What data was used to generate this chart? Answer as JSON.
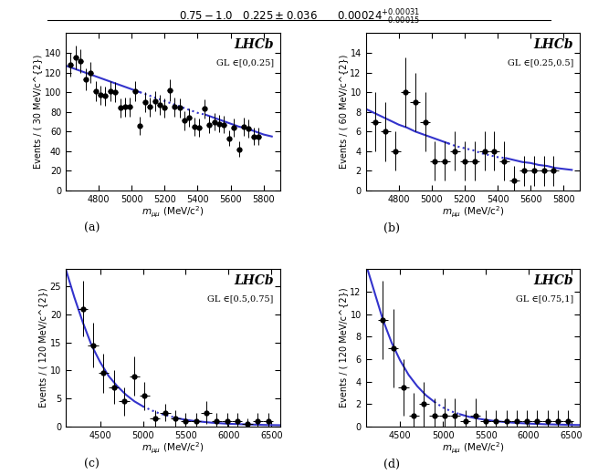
{
  "panel_a": {
    "label": "(a)",
    "lhcb_text": "LHCb",
    "gl_text": "GL ∈[0,0.25]",
    "xlabel": "m_{μμ} (MeV/c^{2})",
    "ylabel": "Events / ( 30 MeV/c^{2})",
    "xlim": [
      4600,
      5900
    ],
    "ylim": [
      0,
      160
    ],
    "yticks": [
      0,
      20,
      40,
      60,
      80,
      100,
      120,
      140
    ],
    "xticks": [
      4800,
      5000,
      5200,
      5400,
      5600,
      5800
    ],
    "data_x": [
      4630,
      4660,
      4690,
      4720,
      4750,
      4780,
      4810,
      4840,
      4870,
      4900,
      4930,
      4960,
      4990,
      5020,
      5050,
      5080,
      5110,
      5140,
      5170,
      5200,
      5230,
      5260,
      5290,
      5320,
      5350,
      5380,
      5410,
      5440,
      5470,
      5500,
      5530,
      5560,
      5590,
      5620,
      5650,
      5680,
      5710,
      5740,
      5770
    ],
    "data_y": [
      128,
      135,
      132,
      113,
      120,
      101,
      97,
      96,
      101,
      100,
      84,
      85,
      85,
      101,
      66,
      90,
      85,
      91,
      87,
      84,
      102,
      85,
      84,
      71,
      74,
      65,
      64,
      83,
      67,
      70,
      68,
      67,
      53,
      64,
      42,
      65,
      63,
      55,
      55
    ],
    "data_yerr": [
      12,
      12,
      12,
      11,
      11,
      10,
      10,
      10,
      10,
      10,
      10,
      10,
      10,
      10,
      9,
      10,
      10,
      10,
      10,
      10,
      11,
      10,
      10,
      10,
      9,
      9,
      9,
      10,
      9,
      9,
      9,
      9,
      8,
      9,
      8,
      9,
      9,
      9,
      9
    ],
    "data_xerr": 15,
    "fit_x": [
      4600,
      4650,
      4700,
      4750,
      4800,
      4850,
      4900,
      4950,
      5000,
      5050,
      5100,
      5150,
      5200,
      5250,
      5300,
      5350,
      5400,
      5450,
      5500,
      5550,
      5600,
      5650,
      5700,
      5750,
      5800,
      5850
    ],
    "fit_y": [
      127,
      124,
      121,
      118,
      115,
      112,
      109,
      106,
      103,
      100,
      97,
      94,
      91,
      88,
      85,
      82,
      79,
      77,
      74,
      71,
      68,
      65,
      63,
      60,
      57,
      55
    ],
    "fit_solid1_end": 5050,
    "fit_dotted_start": 5050,
    "fit_dotted_end": 5450,
    "fit_solid2_start": 5450
  },
  "panel_b": {
    "label": "(b)",
    "lhcb_text": "LHCb",
    "gl_text": "GL ∈[0.25,0.5]",
    "xlabel": "m_{μμ} (MeV/c^{2})",
    "ylabel": "Events / ( 60 MeV/c^{2})",
    "xlim": [
      4600,
      5900
    ],
    "ylim": [
      0,
      16
    ],
    "yticks": [
      0,
      2,
      4,
      6,
      8,
      10,
      12,
      14
    ],
    "xticks": [
      4800,
      5000,
      5200,
      5400,
      5600,
      5800
    ],
    "data_x": [
      4660,
      4720,
      4780,
      4840,
      4900,
      4960,
      5020,
      5080,
      5140,
      5200,
      5260,
      5320,
      5380,
      5440,
      5500,
      5560,
      5620,
      5680,
      5740
    ],
    "data_y": [
      7.0,
      6.0,
      4.0,
      10.0,
      9.0,
      7.0,
      3.0,
      3.0,
      4.0,
      3.0,
      3.0,
      4.0,
      4.0,
      3.0,
      1.0,
      2.0,
      2.0,
      2.0,
      2.0
    ],
    "data_yerr": [
      3.0,
      3.0,
      2.0,
      3.5,
      3.0,
      3.0,
      2.0,
      2.0,
      2.0,
      2.0,
      2.0,
      2.0,
      2.0,
      2.0,
      1.5,
      1.5,
      1.5,
      1.5,
      1.5
    ],
    "data_xerr": 30,
    "fit_x": [
      4600,
      4650,
      4700,
      4750,
      4800,
      4850,
      4900,
      4950,
      5000,
      5050,
      5100,
      5150,
      5200,
      5250,
      5300,
      5350,
      5400,
      5450,
      5500,
      5550,
      5600,
      5650,
      5700,
      5750,
      5800,
      5850
    ],
    "fit_y": [
      8.3,
      7.9,
      7.5,
      7.1,
      6.7,
      6.4,
      6.0,
      5.7,
      5.4,
      5.1,
      4.8,
      4.5,
      4.3,
      4.1,
      3.8,
      3.6,
      3.4,
      3.3,
      3.1,
      2.9,
      2.8,
      2.6,
      2.5,
      2.3,
      2.2,
      2.1
    ],
    "fit_solid1_end": 5100,
    "fit_dotted_start": 5100,
    "fit_dotted_end": 5450,
    "fit_solid2_start": 5450
  },
  "panel_c": {
    "label": "(c)",
    "lhcb_text": "LHCb",
    "gl_text": "GL ∈[0.5,0.75]",
    "xlabel": "m_{μμ} (MeV/c^{2})",
    "ylabel": "Events / ( 120 MeV/c^{2})",
    "xlim": [
      4100,
      6600
    ],
    "ylim": [
      0,
      28
    ],
    "yticks": [
      0,
      5,
      10,
      15,
      20,
      25
    ],
    "xticks": [
      4500,
      5000,
      5500,
      6000,
      6500
    ],
    "data_x": [
      4300,
      4420,
      4540,
      4660,
      4780,
      4900,
      5020,
      5140,
      5260,
      5380,
      5500,
      5620,
      5740,
      5860,
      5980,
      6100,
      6220,
      6340,
      6460
    ],
    "data_y": [
      21.0,
      14.5,
      9.5,
      7.0,
      4.5,
      9.0,
      5.5,
      1.5,
      2.5,
      1.5,
      1.0,
      1.0,
      2.5,
      1.0,
      1.0,
      1.0,
      0.5,
      1.0,
      1.0
    ],
    "data_yerr": [
      5.0,
      4.0,
      3.5,
      3.0,
      2.5,
      3.5,
      2.5,
      1.5,
      1.5,
      1.5,
      1.5,
      1.5,
      2.0,
      1.5,
      1.5,
      1.5,
      1.0,
      1.5,
      1.5
    ],
    "data_xerr": 60,
    "fit_x": [
      4100,
      4200,
      4300,
      4400,
      4500,
      4600,
      4700,
      4800,
      4900,
      5000,
      5100,
      5200,
      5300,
      5400,
      5500,
      5600,
      5700,
      5800,
      5900,
      6000,
      6100,
      6200,
      6300,
      6400,
      6500,
      6600
    ],
    "fit_y": [
      28.0,
      23.0,
      18.5,
      14.5,
      11.5,
      9.0,
      7.2,
      5.7,
      4.5,
      3.6,
      2.9,
      2.3,
      1.9,
      1.5,
      1.2,
      1.0,
      0.85,
      0.7,
      0.6,
      0.5,
      0.45,
      0.4,
      0.35,
      0.3,
      0.27,
      0.25
    ],
    "fit_solid1_end": 5000,
    "fit_dotted_start": 5000,
    "fit_dotted_end": 5400,
    "fit_solid2_start": 5400
  },
  "panel_d": {
    "label": "(d)",
    "lhcb_text": "LHCb",
    "gl_text": "GL ∈[0.75,1]",
    "xlabel": "m_{μμ} (MeV/c^{2})",
    "ylabel": "Events / ( 120 MeV/c^{2})",
    "xlim": [
      4100,
      6600
    ],
    "ylim": [
      0,
      14
    ],
    "yticks": [
      0,
      2,
      4,
      6,
      8,
      10,
      12
    ],
    "xticks": [
      4500,
      5000,
      5500,
      6000,
      6500
    ],
    "data_x": [
      4300,
      4420,
      4540,
      4660,
      4780,
      4900,
      5020,
      5140,
      5260,
      5380,
      5500,
      5620,
      5740,
      5860,
      5980,
      6100,
      6220,
      6340,
      6460
    ],
    "data_y": [
      9.5,
      7.0,
      3.5,
      1.0,
      2.0,
      1.0,
      1.0,
      1.0,
      0.5,
      1.0,
      0.5,
      0.5,
      0.5,
      0.5,
      0.5,
      0.5,
      0.5,
      0.5,
      0.5
    ],
    "data_yerr": [
      3.5,
      3.5,
      2.5,
      2.0,
      2.0,
      1.5,
      1.5,
      1.5,
      1.0,
      1.5,
      1.0,
      1.0,
      1.0,
      1.0,
      1.0,
      1.0,
      1.0,
      1.0,
      1.0
    ],
    "data_xerr": 60,
    "fit_x": [
      4100,
      4200,
      4300,
      4400,
      4500,
      4600,
      4700,
      4800,
      4900,
      5000,
      5100,
      5200,
      5300,
      5400,
      5500,
      5600,
      5700,
      5800,
      5900,
      6000,
      6100,
      6200,
      6300,
      6400,
      6500,
      6600
    ],
    "fit_y": [
      14.5,
      12.0,
      9.5,
      7.5,
      5.9,
      4.6,
      3.6,
      2.8,
      2.2,
      1.7,
      1.35,
      1.1,
      0.88,
      0.72,
      0.6,
      0.5,
      0.42,
      0.36,
      0.31,
      0.27,
      0.24,
      0.21,
      0.19,
      0.17,
      0.15,
      0.14
    ],
    "fit_solid1_end": 4900,
    "fit_dotted_start": 4900,
    "fit_dotted_end": 5200,
    "fit_solid2_start": 5200
  },
  "line_color": "#3333cc",
  "marker_color": "black",
  "marker_size": 3.5,
  "line_width": 1.5
}
